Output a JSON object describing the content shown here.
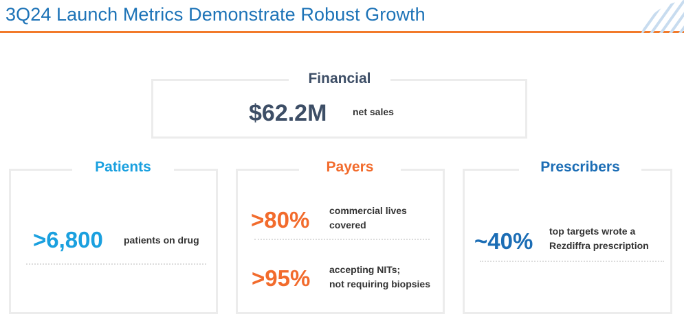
{
  "slide": {
    "title": "3Q24 Launch Metrics Demonstrate Robust Growth"
  },
  "colors": {
    "title_blue": "#1d73b7",
    "accent_orange": "#f27a2a",
    "patients_blue": "#1aa0df",
    "payers_orange": "#f26b2c",
    "prescribers_blue": "#1b6db5",
    "financial_slate": "#3d4e66"
  },
  "financial": {
    "heading": "Financial",
    "value": "$62.2M",
    "label": "net sales"
  },
  "patients": {
    "heading": "Patients",
    "value": ">6,800",
    "label": "patients on drug"
  },
  "payers": {
    "heading": "Payers",
    "metrics": [
      {
        "value": ">80%",
        "label_line1": "commercial lives",
        "label_line2": "covered"
      },
      {
        "value": ">95%",
        "label_line1": "accepting NITs;",
        "label_line2": "not requiring biopsies"
      }
    ]
  },
  "prescribers": {
    "heading": "Prescribers",
    "value": "~40%",
    "label_line1": "top targets wrote a",
    "label_line2": "Rezdiffra prescription"
  }
}
